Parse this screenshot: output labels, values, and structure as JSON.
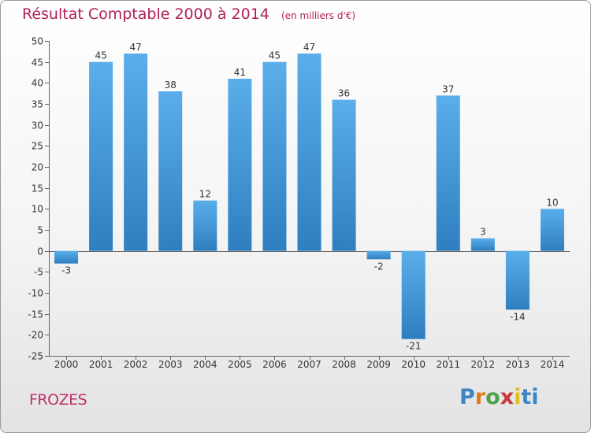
{
  "title": "Résultat Comptable 2000 à 2014",
  "unit": "(en milliers d'€)",
  "commune": "FROZES",
  "logo": {
    "p1": "P",
    "p2": "r",
    "p3": "o",
    "p4": "x",
    "p5": "i",
    "p6": "ti"
  },
  "colors": {
    "bar_light": "#5aaeea",
    "bar_dark": "#2f7fc0",
    "title": "#b2205a"
  },
  "chart_data": {
    "type": "bar",
    "title": "Résultat Comptable 2000 à 2014",
    "subtitle": "(en milliers d'€)",
    "xlabel": "",
    "ylabel": "",
    "categories": [
      "2000",
      "2001",
      "2002",
      "2003",
      "2004",
      "2005",
      "2006",
      "2007",
      "2008",
      "2009",
      "2010",
      "2011",
      "2012",
      "2013",
      "2014"
    ],
    "values": [
      -3,
      45,
      47,
      38,
      12,
      41,
      45,
      47,
      36,
      -2,
      -21,
      37,
      3,
      -14,
      10
    ],
    "ylim": [
      -25,
      50
    ],
    "yticks": [
      -25,
      -20,
      -15,
      -10,
      -5,
      0,
      5,
      10,
      15,
      20,
      25,
      30,
      35,
      40,
      45,
      50
    ],
    "grid": false,
    "legend": "none"
  }
}
